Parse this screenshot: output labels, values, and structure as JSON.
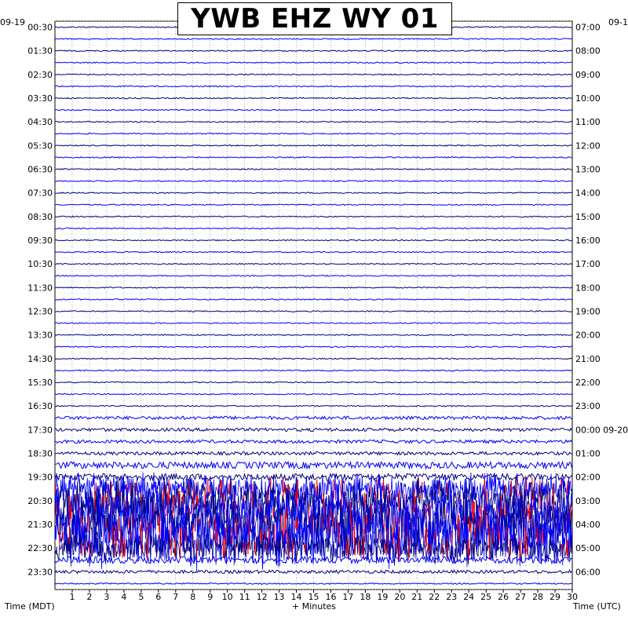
{
  "title": "YWB EHZ WY 01",
  "date_left": "09-19",
  "date_right": "09-1",
  "x_axis_label": "+ Minutes",
  "left_axis_label": "Time (MDT)",
  "right_axis_label": "Time (UTC)",
  "colors": {
    "background": "#ffffff",
    "trace_dark": "#000080",
    "trace_blue": "#0000ff",
    "trace_red": "#ff0000",
    "grid": "#808080"
  },
  "chart_data": {
    "type": "line",
    "title": "YWB EHZ WY 01",
    "xlabel": "+ Minutes",
    "xlim": [
      0,
      30
    ],
    "x_ticks": [
      1,
      2,
      3,
      4,
      5,
      6,
      7,
      8,
      9,
      10,
      11,
      12,
      13,
      14,
      15,
      16,
      17,
      18,
      19,
      20,
      21,
      22,
      23,
      24,
      25,
      26,
      27,
      28,
      29,
      30
    ],
    "lines_per_hour": 2,
    "row_count": 48,
    "left_hour_labels": [
      "00:30",
      "01:30",
      "02:30",
      "03:30",
      "04:30",
      "05:30",
      "06:30",
      "07:30",
      "08:30",
      "09:30",
      "10:30",
      "11:30",
      "12:30",
      "13:30",
      "14:30",
      "15:30",
      "16:30",
      "17:30",
      "18:30",
      "19:30",
      "20:30",
      "21:30",
      "22:30",
      "23:30"
    ],
    "right_hour_labels": [
      "07:00",
      "08:00",
      "09:00",
      "10:00",
      "11:00",
      "12:00",
      "13:00",
      "14:00",
      "15:00",
      "16:00",
      "17:00",
      "18:00",
      "19:00",
      "20:00",
      "21:00",
      "22:00",
      "23:00",
      "00:00 09-20",
      "01:00",
      "02:00",
      "03:00",
      "04:00",
      "05:00",
      "06:00"
    ],
    "trace_color_cycle": [
      "#000080",
      "#0000ff"
    ],
    "row_amplitude_level": [
      1,
      1,
      1,
      1,
      1,
      1,
      1,
      1,
      1,
      1,
      1,
      1,
      1,
      1,
      1,
      1,
      1,
      1,
      1,
      1,
      1,
      1,
      1,
      1,
      1,
      1,
      1,
      1,
      1,
      1,
      1,
      1,
      1,
      2,
      2,
      2,
      2,
      3,
      3,
      5,
      6,
      6,
      7,
      7,
      5,
      3,
      2,
      1
    ],
    "quiet_rows": [
      0,
      47
    ]
  }
}
